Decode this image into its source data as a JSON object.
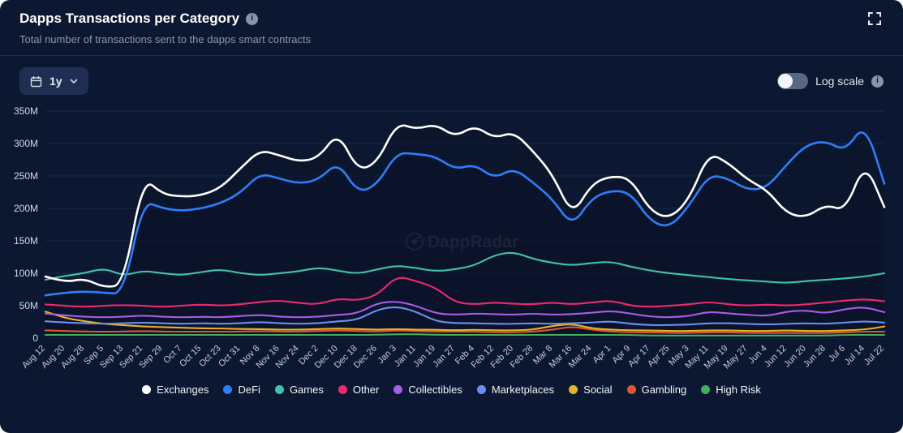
{
  "header": {
    "title": "Dapps Transactions per Category",
    "subtitle": "Total number of transactions sent to the dapps smart contracts"
  },
  "controls": {
    "range_label": "1y",
    "log_scale_label": "Log scale"
  },
  "icons": {
    "info": "i"
  },
  "watermark_text": "DappRadar",
  "chart_data": {
    "type": "line",
    "title": "Dapps Transactions per Category",
    "unit": "M",
    "ylim": [
      0,
      350
    ],
    "y_tick_values": [
      0,
      50,
      100,
      150,
      200,
      250,
      300,
      350
    ],
    "y_tick_labels": [
      "0",
      "50M",
      "100M",
      "150M",
      "200M",
      "250M",
      "300M",
      "350M"
    ],
    "grid": "horizontal",
    "legend_position": "bottom",
    "categories": [
      "Aug 12",
      "Aug 20",
      "Aug 28",
      "Sep 5",
      "Sep 13",
      "Sep 21",
      "Sep 29",
      "Oct 7",
      "Oct 15",
      "Oct 23",
      "Oct 31",
      "Nov 8",
      "Nov 16",
      "Nov 24",
      "Dec 2",
      "Dec 10",
      "Dec 18",
      "Dec 26",
      "Jan 3",
      "Jan 11",
      "Jan 19",
      "Jan 27",
      "Feb 4",
      "Feb 12",
      "Feb 20",
      "Feb 28",
      "Mar 8",
      "Mar 16",
      "Mar 24",
      "Apr 1",
      "Apr 9",
      "Apr 17",
      "Apr 25",
      "May 3",
      "May 11",
      "May 19",
      "May 27",
      "Jun 4",
      "Jun 12",
      "Jun 20",
      "Jun 28",
      "Jul 6",
      "Jul 14",
      "Jul 22"
    ],
    "series": [
      {
        "name": "Exchanges",
        "color": "#ffffff",
        "values": [
          95,
          86,
          92,
          78,
          82,
          248,
          222,
          218,
          220,
          232,
          262,
          290,
          282,
          272,
          278,
          318,
          258,
          270,
          332,
          322,
          330,
          310,
          328,
          308,
          318,
          288,
          252,
          188,
          238,
          250,
          246,
          196,
          184,
          214,
          286,
          270,
          244,
          228,
          192,
          186,
          206,
          196,
          272,
          202
        ]
      },
      {
        "name": "DeFi",
        "color": "#2d7ff7",
        "values": [
          66,
          70,
          72,
          70,
          68,
          212,
          200,
          196,
          200,
          208,
          224,
          254,
          246,
          238,
          244,
          272,
          224,
          236,
          286,
          284,
          280,
          260,
          268,
          246,
          262,
          240,
          214,
          172,
          216,
          228,
          224,
          180,
          170,
          204,
          252,
          246,
          228,
          232,
          268,
          298,
          304,
          288,
          332,
          238
        ]
      },
      {
        "name": "Games",
        "color": "#3fc3ad",
        "values": [
          90,
          96,
          100,
          108,
          96,
          104,
          100,
          97,
          102,
          106,
          100,
          97,
          100,
          103,
          109,
          104,
          99,
          106,
          112,
          108,
          103,
          106,
          112,
          128,
          133,
          122,
          116,
          112,
          116,
          118,
          110,
          104,
          100,
          97,
          94,
          91,
          89,
          87,
          85,
          88,
          90,
          92,
          95,
          100
        ]
      },
      {
        "name": "Other",
        "color": "#eb2a70",
        "values": [
          52,
          50,
          48,
          50,
          51,
          50,
          48,
          50,
          52,
          50,
          52,
          56,
          58,
          54,
          52,
          61,
          58,
          66,
          96,
          88,
          78,
          55,
          52,
          55,
          53,
          52,
          55,
          52,
          55,
          58,
          50,
          48,
          50,
          52,
          56,
          52,
          50,
          52,
          50,
          52,
          55,
          58,
          60,
          57
        ]
      },
      {
        "name": "Collectibles",
        "color": "#a95ce8",
        "values": [
          38,
          35,
          33,
          32,
          33,
          35,
          33,
          32,
          33,
          32,
          34,
          36,
          33,
          32,
          33,
          36,
          38,
          54,
          57,
          50,
          38,
          36,
          38,
          37,
          36,
          38,
          36,
          37,
          39,
          42,
          38,
          33,
          32,
          34,
          41,
          38,
          36,
          34,
          41,
          43,
          38,
          45,
          48,
          40
        ]
      },
      {
        "name": "Marketplaces",
        "color": "#6a8ff0",
        "values": [
          26,
          24,
          23,
          22,
          23,
          24,
          23,
          22,
          23,
          22,
          23,
          25,
          23,
          22,
          23,
          26,
          28,
          44,
          49,
          41,
          26,
          23,
          23,
          22,
          22,
          23,
          22,
          23,
          24,
          26,
          22,
          20,
          20,
          21,
          23,
          23,
          22,
          21,
          22,
          23,
          22,
          24,
          26,
          24
        ]
      },
      {
        "name": "Social",
        "color": "#e6b422",
        "values": [
          41,
          31,
          26,
          22,
          20,
          18,
          17,
          16,
          15,
          15,
          14,
          14,
          13,
          13,
          14,
          15,
          14,
          13,
          14,
          13,
          13,
          12,
          13,
          12,
          12,
          13,
          19,
          22,
          15,
          13,
          12,
          12,
          11,
          11,
          12,
          12,
          11,
          11,
          12,
          11,
          11,
          12,
          13,
          18
        ]
      },
      {
        "name": "Gambling",
        "color": "#e05438",
        "values": [
          12,
          11,
          10,
          10,
          10,
          11,
          10,
          10,
          10,
          10,
          10,
          11,
          10,
          10,
          11,
          12,
          11,
          10,
          12,
          11,
          10,
          10,
          10,
          9,
          9,
          10,
          13,
          18,
          13,
          10,
          9,
          9,
          8,
          8,
          9,
          9,
          8,
          8,
          8,
          8,
          8,
          9,
          10,
          10
        ]
      },
      {
        "name": "High Risk",
        "color": "#41b05e",
        "values": [
          5,
          5,
          5,
          5,
          5,
          5,
          5,
          5,
          5,
          5,
          5,
          5,
          5,
          5,
          5,
          5,
          5,
          5,
          6,
          6,
          5,
          5,
          5,
          5,
          5,
          5,
          5,
          5,
          5,
          5,
          5,
          4,
          4,
          4,
          4,
          4,
          4,
          4,
          4,
          4,
          4,
          5,
          5,
          5
        ]
      }
    ]
  }
}
